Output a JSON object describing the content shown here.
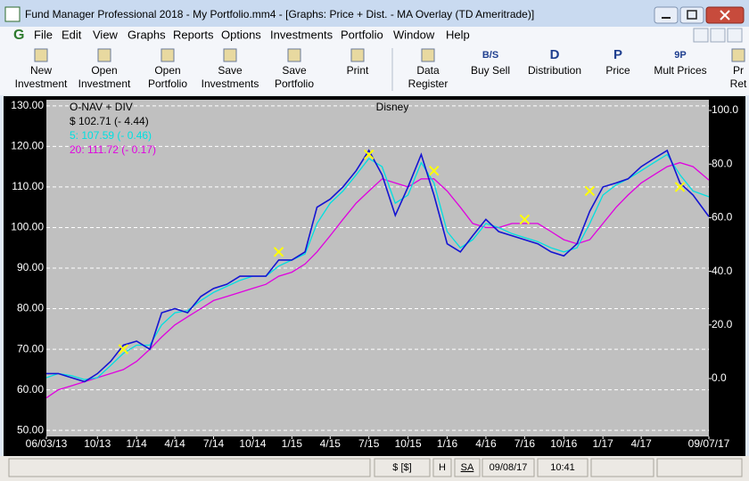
{
  "window": {
    "title": "Fund Manager Professional 2018 - My Portfolio.mm4 - [Graphs: Price + Dist. - MA Overlay (TD Ameritrade)]",
    "menu": [
      "File",
      "Edit",
      "View",
      "Graphs",
      "Reports",
      "Options",
      "Investments",
      "Portfolio",
      "Window",
      "Help"
    ],
    "toolbar": [
      {
        "label": [
          "New",
          "Investment"
        ]
      },
      {
        "label": [
          "Open",
          "Investment"
        ]
      },
      {
        "label": [
          "Open",
          "Portfolio"
        ]
      },
      {
        "label": [
          "Save",
          "Investments"
        ]
      },
      {
        "label": [
          "Save",
          "Portfolio"
        ]
      },
      {
        "label": [
          "Print"
        ]
      },
      {
        "label": [
          "Data",
          "Register"
        ]
      },
      {
        "icon": "B/S",
        "label": [
          "Buy Sell"
        ]
      },
      {
        "icon": "D",
        "label": [
          "Distribution"
        ]
      },
      {
        "icon": "P",
        "label": [
          "Price"
        ]
      },
      {
        "icon": "9P",
        "label": [
          "Mult Prices"
        ]
      },
      {
        "label": [
          "Pr",
          "Ret"
        ]
      }
    ],
    "status": [
      "$ [$]",
      "H",
      "SA",
      "09/08/17",
      "10:41"
    ]
  },
  "chart_data": {
    "type": "line",
    "title": "Disney",
    "subtitle": "O-NAV + DIV",
    "x": [
      "2013-06-03",
      "2013-07",
      "2013-08",
      "2013-09",
      "2013-10",
      "2013-11",
      "2013-12",
      "2014-01",
      "2014-02",
      "2014-03",
      "2014-04",
      "2014-05",
      "2014-06",
      "2014-07",
      "2014-08",
      "2014-09",
      "2014-10",
      "2014-11",
      "2014-12",
      "2015-01",
      "2015-02",
      "2015-03",
      "2015-04",
      "2015-05",
      "2015-06",
      "2015-07",
      "2015-08",
      "2015-09",
      "2015-10",
      "2015-11",
      "2015-12",
      "2016-01",
      "2016-02",
      "2016-03",
      "2016-04",
      "2016-05",
      "2016-06",
      "2016-07",
      "2016-08",
      "2016-09",
      "2016-10",
      "2016-11",
      "2016-12",
      "2017-01",
      "2017-02",
      "2017-03",
      "2017-04",
      "2017-05",
      "2017-06",
      "2017-07",
      "2017-08",
      "2017-09-07"
    ],
    "series": [
      {
        "name": "$ 102.71 (- 4.44)",
        "color": "#1414d2",
        "label_color": "#000000",
        "values": [
          64,
          64,
          63,
          62,
          64,
          67,
          71,
          72,
          70,
          79,
          80,
          79,
          83,
          85,
          86,
          88,
          88,
          88,
          92,
          92,
          94,
          105,
          107,
          110,
          114,
          119,
          113,
          103,
          110,
          118,
          108,
          96,
          94,
          98,
          102,
          99,
          98,
          97,
          96,
          94,
          93,
          96,
          104,
          110,
          111,
          112,
          115,
          117,
          119,
          111,
          108,
          102.71
        ]
      },
      {
        "name": "5: 107.59 (- 0.46)",
        "color": "#00e0e0",
        "label_color": "#00e0e0",
        "values": [
          63,
          64,
          63.5,
          62.5,
          63,
          66,
          69,
          71,
          71,
          76,
          79,
          79.5,
          82,
          84,
          85.5,
          87,
          88,
          88,
          90.5,
          92,
          93.5,
          101,
          106,
          109,
          113,
          117,
          115,
          106,
          108,
          116,
          111,
          99,
          95,
          97,
          101,
          100,
          98.5,
          97.5,
          96.5,
          95,
          94,
          95,
          101,
          108,
          110.5,
          112,
          114,
          116,
          118,
          113,
          109,
          107.59
        ]
      },
      {
        "name": "20: 111.72 (- 0.17)",
        "color": "#e000e0",
        "label_color": "#e000e0",
        "values": [
          58,
          60,
          61,
          62,
          63,
          64,
          65,
          67,
          70,
          73,
          76,
          78,
          80,
          82,
          83,
          84,
          85,
          86,
          88,
          89,
          91,
          94,
          98,
          102,
          106,
          109,
          112,
          111,
          110,
          112,
          112,
          109,
          105,
          101,
          100,
          100,
          101,
          101,
          101,
          99,
          97,
          96,
          97,
          101,
          105,
          108,
          111,
          113,
          115,
          116,
          115,
          111.72
        ]
      }
    ],
    "crossovers": {
      "color": "#ffff00",
      "x": [
        "2013-12",
        "2014-12",
        "2015-07",
        "2015-12",
        "2016-07",
        "2016-12",
        "2017-07"
      ],
      "values": [
        70,
        94,
        118,
        114,
        102,
        109,
        110
      ]
    },
    "xlim": [
      "2013-06-03",
      "2017-09-07"
    ],
    "xticks": [
      {
        "value": "2013-06-03",
        "label": "06/03/13"
      },
      {
        "value": "2013-10",
        "label": "10/13"
      },
      {
        "value": "2014-01",
        "label": "1/14"
      },
      {
        "value": "2014-04",
        "label": "4/14"
      },
      {
        "value": "2014-07",
        "label": "7/14"
      },
      {
        "value": "2014-10",
        "label": "10/14"
      },
      {
        "value": "2015-01",
        "label": "1/15"
      },
      {
        "value": "2015-04",
        "label": "4/15"
      },
      {
        "value": "2015-07",
        "label": "7/15"
      },
      {
        "value": "2015-10",
        "label": "10/15"
      },
      {
        "value": "2016-01",
        "label": "1/16"
      },
      {
        "value": "2016-04",
        "label": "4/16"
      },
      {
        "value": "2016-07",
        "label": "7/16"
      },
      {
        "value": "2016-10",
        "label": "10/16"
      },
      {
        "value": "2017-01",
        "label": "1/17"
      },
      {
        "value": "2017-04",
        "label": "4/17"
      },
      {
        "value": "2017-09-07",
        "label": "09/07/17"
      }
    ],
    "ylim": [
      48.5,
      131.5
    ],
    "yticks": [
      {
        "value": 50,
        "label": "50.00"
      },
      {
        "value": 60,
        "label": "60.00"
      },
      {
        "value": 70,
        "label": "70.00"
      },
      {
        "value": 80,
        "label": "80.00"
      },
      {
        "value": 90,
        "label": "90.00"
      },
      {
        "value": 100,
        "label": "100.00"
      },
      {
        "value": 110,
        "label": "110.00"
      },
      {
        "value": 120,
        "label": "120.00"
      },
      {
        "value": 130,
        "label": "130.00"
      }
    ],
    "y2lim": [
      -21.6,
      104
    ],
    "y2ticks": [
      {
        "value": 0,
        "label": "0.0"
      },
      {
        "value": 20,
        "label": "20.0"
      },
      {
        "value": 40,
        "label": "40.0"
      },
      {
        "value": 60,
        "label": "60.0"
      },
      {
        "value": 80,
        "label": "80.0"
      },
      {
        "value": 100,
        "label": "100.0"
      }
    ],
    "grid": true
  }
}
